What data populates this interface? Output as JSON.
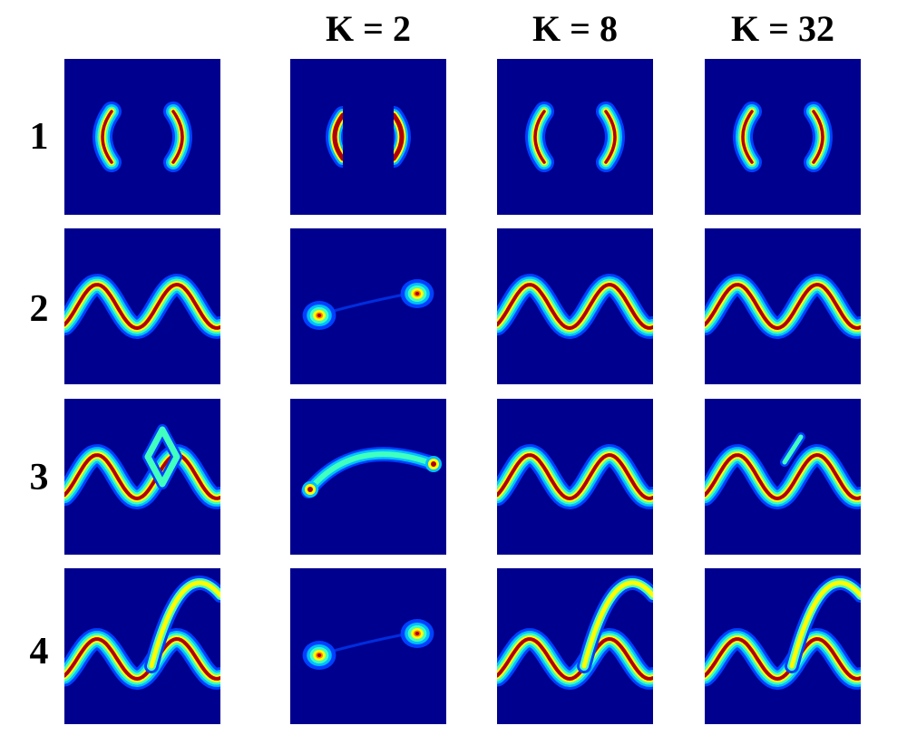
{
  "column_headers": [
    "K = 2",
    "K = 8",
    "K = 32"
  ],
  "row_labels": [
    "1",
    "2",
    "3",
    "4"
  ],
  "colors": {
    "background": "#00008f",
    "cmap": [
      "#00008f",
      "#0040ff",
      "#00c0ff",
      "#40ffbf",
      "#ffff00",
      "#ff8000",
      "#b00000"
    ]
  },
  "panels": [
    {
      "row": 1,
      "column": 1,
      "pattern": "two-crescents"
    },
    {
      "row": 1,
      "column": 2,
      "pattern": "two-crescents-truncated"
    },
    {
      "row": 1,
      "column": 3,
      "pattern": "two-crescents"
    },
    {
      "row": 1,
      "column": 4,
      "pattern": "two-crescents"
    },
    {
      "row": 2,
      "column": 1,
      "pattern": "sine-wave"
    },
    {
      "row": 2,
      "column": 2,
      "pattern": "two-blobs"
    },
    {
      "row": 2,
      "column": 3,
      "pattern": "sine-wave"
    },
    {
      "row": 2,
      "column": 4,
      "pattern": "sine-wave"
    },
    {
      "row": 3,
      "column": 1,
      "pattern": "sine-wave-with-loop"
    },
    {
      "row": 3,
      "column": 2,
      "pattern": "arc"
    },
    {
      "row": 3,
      "column": 3,
      "pattern": "sine-wave"
    },
    {
      "row": 3,
      "column": 4,
      "pattern": "sine-wave-with-branch"
    },
    {
      "row": 4,
      "column": 1,
      "pattern": "sine-wave-with-fork"
    },
    {
      "row": 4,
      "column": 2,
      "pattern": "two-blobs"
    },
    {
      "row": 4,
      "column": 3,
      "pattern": "sine-wave-with-fork"
    },
    {
      "row": 4,
      "column": 4,
      "pattern": "sine-wave-with-fork"
    }
  ]
}
